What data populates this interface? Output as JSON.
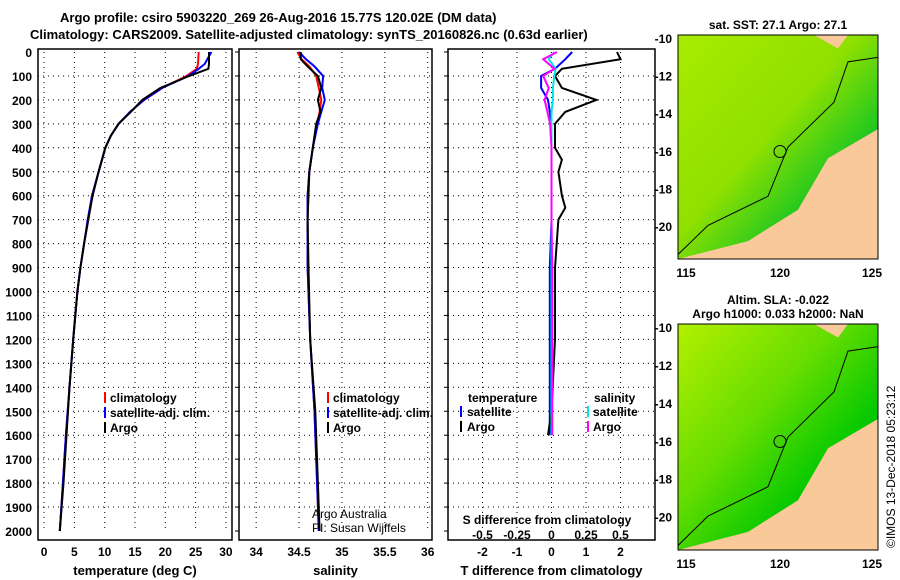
{
  "title_line1": "Argo profile: csiro 5903220_269 26-Aug-2016 15.77S 120.02E (DM data)",
  "title_line2": "Climatology: CARS2009. Satellite-adjusted climatology: synTS_20160826.nc (0.63d earlier)",
  "colors": {
    "climatology": "#ff0000",
    "satellite": "#0000ff",
    "argo": "#000000",
    "sal_satellite": "#00e5e5",
    "sal_argo": "#ff00ff",
    "land": "#f9c99a",
    "ocean_light": "#b4f000",
    "ocean_dark": "#00c800"
  },
  "depth_ticks": [
    0,
    100,
    200,
    300,
    400,
    500,
    600,
    700,
    800,
    900,
    1000,
    1100,
    1200,
    1300,
    1400,
    1500,
    1600,
    1700,
    1800,
    1900,
    2000
  ],
  "chart_data": [
    {
      "type": "line",
      "xlabel": "temperature (deg C)",
      "ylabel": "depth",
      "xlim": [
        -1,
        31
      ],
      "ylim": [
        2000,
        0
      ],
      "xticks": [
        0,
        5,
        10,
        15,
        20,
        25,
        30
      ],
      "legend": [
        "climatology",
        "satellite-adj. clim.",
        "Argo"
      ],
      "legend_placement": "bottom-right",
      "depth": [
        0,
        50,
        70,
        100,
        150,
        200,
        250,
        300,
        350,
        400,
        500,
        600,
        700,
        800,
        900,
        1000,
        1200,
        1400,
        1600,
        1800,
        2000
      ],
      "series": [
        {
          "name": "climatology",
          "color": "#ff0000",
          "values": [
            25.5,
            25.4,
            25.2,
            23.5,
            19.5,
            16.5,
            14.2,
            12.3,
            11,
            10.1,
            9,
            7.9,
            7.3,
            6.6,
            6,
            5.5,
            4.8,
            4.2,
            3.6,
            3.1,
            2.6
          ]
        },
        {
          "name": "satellite-adj. clim.",
          "color": "#0000ff",
          "values": [
            27.6,
            26.5,
            25.5,
            23.8,
            19.5,
            16.5,
            14.2,
            12.3,
            11,
            10.1,
            9,
            7.9,
            7.2,
            6.6,
            6,
            5.5,
            4.8,
            4.2,
            3.6,
            3.1,
            2.6
          ]
        },
        {
          "name": "Argo",
          "color": "#000000",
          "values": [
            27.2,
            27.2,
            27.1,
            23.9,
            19.2,
            16.2,
            14.3,
            12.3,
            11,
            10.1,
            9,
            8,
            7.3,
            6.6,
            6,
            5.5,
            4.8,
            4.2,
            3.7,
            3.2,
            2.6
          ]
        }
      ]
    },
    {
      "type": "line",
      "xlabel": "salinity",
      "xlim": [
        33.8,
        36.05
      ],
      "ylim": [
        2000,
        0
      ],
      "xticks": [
        34,
        34.5,
        35,
        35.5,
        36
      ],
      "legend": [
        "climatology",
        "satellite-adj. clim.",
        "Argo"
      ],
      "legend_placement": "bottom-right",
      "annotation": [
        "Argo Australia",
        "PI: Susan Wijffels"
      ],
      "depth": [
        0,
        30,
        60,
        100,
        150,
        200,
        250,
        300,
        400,
        500,
        600,
        700,
        900,
        1200,
        1500,
        1800,
        2000
      ],
      "series": [
        {
          "name": "climatology",
          "color": "#ff0000",
          "values": [
            34.48,
            34.53,
            34.62,
            34.7,
            34.73,
            34.76,
            34.74,
            34.71,
            34.66,
            34.62,
            34.6,
            34.6,
            34.6,
            34.63,
            34.68,
            34.71,
            34.73
          ]
        },
        {
          "name": "satellite-adj. clim.",
          "color": "#0000ff",
          "values": [
            34.5,
            34.58,
            34.68,
            34.78,
            34.77,
            34.8,
            34.76,
            34.72,
            34.66,
            34.62,
            34.6,
            34.6,
            34.6,
            34.63,
            34.68,
            34.71,
            34.73
          ]
        },
        {
          "name": "Argo",
          "color": "#000000",
          "values": [
            34.52,
            34.52,
            34.6,
            34.72,
            34.76,
            34.72,
            34.75,
            34.7,
            34.66,
            34.62,
            34.61,
            34.6,
            34.61,
            34.63,
            34.69,
            34.72,
            34.74
          ]
        }
      ]
    },
    {
      "type": "line",
      "xlabel": "T difference from climatology",
      "xlabel2": "S difference from climatology",
      "xlim": [
        -3,
        3
      ],
      "ylim": [
        2000,
        0
      ],
      "xticks": [
        -2,
        -1,
        0,
        1,
        2
      ],
      "xticks2": [
        -0.5,
        -0.25,
        0,
        0.25,
        0.5
      ],
      "legend_temperature_title": "temperature",
      "legend_salinity_title": "salinity",
      "legend": [
        "satellite",
        "Argo"
      ],
      "depth": [
        0,
        30,
        70,
        100,
        150,
        200,
        250,
        300,
        400,
        450,
        500,
        600,
        650,
        700,
        900,
        1200,
        1500,
        1600
      ],
      "series": [
        {
          "name": "temperature satellite",
          "color": "#0000ff",
          "axis": "T",
          "values": [
            0.6,
            0.4,
            0.1,
            -0.3,
            -0.3,
            -0.1,
            -0.05,
            0,
            0,
            0,
            0,
            0,
            0,
            0,
            -0.05,
            -0.05,
            -0.05,
            -0.05
          ]
        },
        {
          "name": "temperature Argo",
          "color": "#000000",
          "axis": "T",
          "values": [
            1.9,
            2.0,
            0.3,
            0.1,
            0.3,
            1.3,
            0.4,
            0.1,
            0.1,
            0.3,
            0.2,
            0.3,
            0.4,
            0.2,
            0.1,
            0.1,
            0,
            -0.1
          ]
        },
        {
          "name": "salinity satellite",
          "color": "#00e5e5",
          "axis": "S",
          "values": [
            0.02,
            -0.02,
            0.03,
            0.02,
            0.01,
            0.01,
            0,
            0,
            0,
            0,
            0,
            0,
            0,
            0,
            0,
            0,
            0,
            0
          ]
        },
        {
          "name": "salinity Argo",
          "color": "#ff00ff",
          "axis": "S",
          "values": [
            0.04,
            -0.06,
            0.02,
            -0.06,
            -0.02,
            -0.05,
            -0.03,
            -0.01,
            0,
            0,
            0,
            0,
            0,
            0,
            0.005,
            0.005,
            0.005,
            0.005
          ]
        }
      ]
    }
  ],
  "map_sst": {
    "title": "sat. SST: 27.1 Argo: 27.1",
    "lat_ticks": [
      "-10",
      "-12",
      "-14",
      "-16",
      "-18",
      "-20"
    ],
    "lon_ticks": [
      "115",
      "120",
      "125"
    ]
  },
  "map_sla": {
    "title1": "Altim. SLA: -0.022",
    "title2": "Argo h1000: 0.033 h2000: NaN",
    "lat_ticks": [
      "-10",
      "-12",
      "-14",
      "-16",
      "-18",
      "-20"
    ],
    "lon_ticks": [
      "115",
      "120",
      "125"
    ]
  },
  "credit": "©IMOS 13-Dec-2018 05:23:12"
}
